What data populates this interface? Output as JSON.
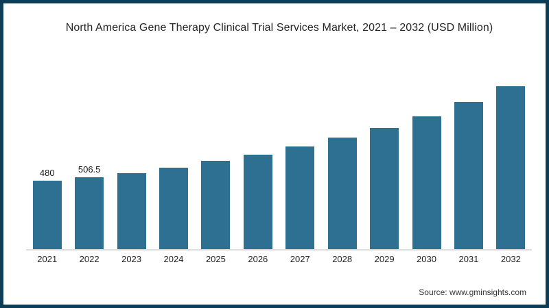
{
  "page": {
    "title": "North America Gene Therapy Clinical Trial Services Market, 2021 – 2032 (USD Million)",
    "source": "Source: www.gminsights.com"
  },
  "chart_data": {
    "type": "bar",
    "title": "North America Gene Therapy Clinical Trial Services Market, 2021 – 2032 (USD Million)",
    "categories": [
      "2021",
      "2022",
      "2023",
      "2024",
      "2025",
      "2026",
      "2027",
      "2028",
      "2029",
      "2030",
      "2031",
      "2032"
    ],
    "values": [
      480,
      506.5,
      534,
      572,
      620,
      661,
      720,
      784,
      851,
      932,
      1033,
      1145
    ],
    "data_labels": [
      "480",
      "506.5",
      "",
      "",
      "",
      "",
      "",
      "",
      "",
      "",
      "",
      ""
    ],
    "xlabel": "",
    "ylabel": "",
    "ylim": [
      0,
      1200
    ],
    "grid": false,
    "legend": "none",
    "bar_color": "#2e7092",
    "axis_line_color": "#dcdcdc",
    "frame_color": "#0d3c57",
    "title_color": "#262626"
  }
}
